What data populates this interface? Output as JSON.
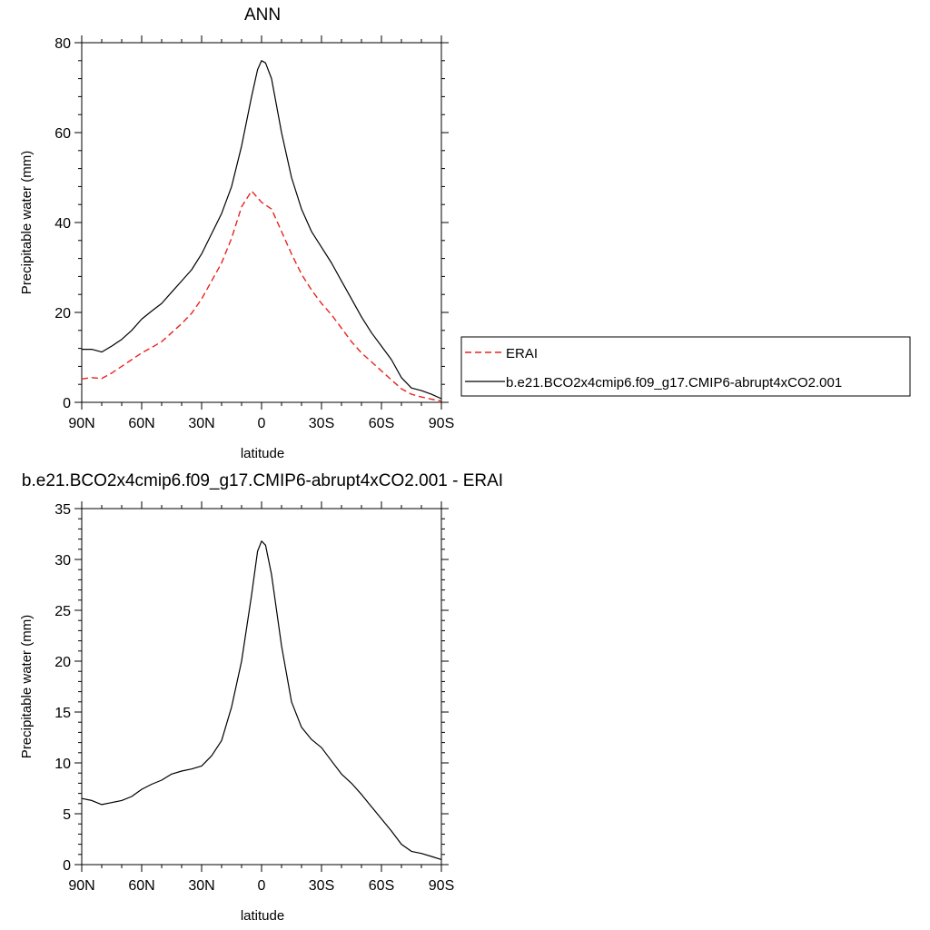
{
  "chart_data": [
    {
      "type": "line",
      "title": "ANN",
      "xlabel": "latitude",
      "ylabel": "Precipitable water (mm)",
      "xlim": [
        90,
        -90
      ],
      "ylim": [
        0,
        80
      ],
      "xticks": [
        90,
        60,
        30,
        0,
        -30,
        -60,
        -90
      ],
      "xtick_labels": [
        "90N",
        "60N",
        "30N",
        "0",
        "30S",
        "60S",
        "90S"
      ],
      "yticks": [
        0,
        20,
        40,
        60,
        80
      ],
      "yminor_step": 4,
      "xminor_step": 10,
      "grid": false,
      "legend": {
        "position": "right",
        "show": true
      },
      "series": [
        {
          "name": "ERAI",
          "color": "#e8231f",
          "dash": "dashed",
          "x": [
            90,
            85,
            80,
            75,
            70,
            65,
            60,
            55,
            50,
            45,
            40,
            35,
            30,
            25,
            20,
            15,
            10,
            5,
            0,
            -5,
            -10,
            -15,
            -20,
            -25,
            -30,
            -35,
            -40,
            -45,
            -50,
            -55,
            -60,
            -65,
            -70,
            -75,
            -80,
            -85,
            -90
          ],
          "y": [
            5.2,
            5.5,
            5.3,
            6.5,
            8.0,
            9.5,
            11.0,
            12.2,
            13.5,
            15.5,
            17.5,
            19.8,
            23.0,
            27.0,
            31.0,
            36.5,
            43.5,
            47.0,
            44.5,
            43.0,
            38.0,
            33.0,
            28.5,
            25.0,
            22.0,
            19.5,
            16.5,
            13.5,
            11.0,
            9.0,
            7.0,
            5.0,
            3.0,
            1.8,
            1.2,
            0.7,
            0.3
          ]
        },
        {
          "name": "b.e21.BCO2x4cmip6.f09_g17.CMIP6-abrupt4xCO2.001",
          "color": "#000000",
          "dash": "solid",
          "x": [
            90,
            85,
            80,
            75,
            70,
            65,
            60,
            55,
            50,
            45,
            40,
            35,
            30,
            25,
            20,
            15,
            10,
            5,
            2,
            0,
            -2,
            -5,
            -10,
            -15,
            -20,
            -25,
            -30,
            -35,
            -40,
            -45,
            -50,
            -55,
            -60,
            -65,
            -70,
            -75,
            -80,
            -85,
            -90
          ],
          "y": [
            11.8,
            11.8,
            11.2,
            12.5,
            14.0,
            16.0,
            18.5,
            20.3,
            22.0,
            24.5,
            27.0,
            29.5,
            33.0,
            37.5,
            42.0,
            48.0,
            57.0,
            68.0,
            74.0,
            76.0,
            75.5,
            72.0,
            60.0,
            50.0,
            43.0,
            38.0,
            34.5,
            31.0,
            27.0,
            23.0,
            19.0,
            15.5,
            12.5,
            9.5,
            5.5,
            3.2,
            2.6,
            1.8,
            0.8
          ]
        }
      ]
    },
    {
      "type": "line",
      "title": "b.e21.BCO2x4cmip6.f09_g17.CMIP6-abrupt4xCO2.001 - ERAI",
      "xlabel": "latitude",
      "ylabel": "Precipitable water (mm)",
      "xlim": [
        90,
        -90
      ],
      "ylim": [
        0,
        35
      ],
      "xticks": [
        90,
        60,
        30,
        0,
        -30,
        -60,
        -90
      ],
      "xtick_labels": [
        "90N",
        "60N",
        "30N",
        "0",
        "30S",
        "60S",
        "90S"
      ],
      "yticks": [
        0,
        5,
        10,
        15,
        20,
        25,
        30,
        35
      ],
      "yminor_step": 1,
      "xminor_step": 10,
      "grid": false,
      "legend": {
        "show": false
      },
      "series": [
        {
          "color": "#000000",
          "dash": "solid",
          "x": [
            90,
            85,
            80,
            75,
            70,
            65,
            60,
            55,
            50,
            45,
            40,
            35,
            30,
            25,
            20,
            15,
            10,
            5,
            2,
            0,
            -2,
            -5,
            -10,
            -15,
            -20,
            -25,
            -30,
            -35,
            -40,
            -45,
            -50,
            -55,
            -60,
            -65,
            -70,
            -75,
            -80,
            -85,
            -90
          ],
          "y": [
            6.5,
            6.3,
            5.9,
            6.1,
            6.3,
            6.7,
            7.4,
            7.9,
            8.3,
            8.9,
            9.2,
            9.4,
            9.7,
            10.7,
            12.2,
            15.5,
            20.0,
            26.5,
            30.8,
            31.8,
            31.4,
            28.5,
            21.5,
            16.0,
            13.5,
            12.3,
            11.5,
            10.2,
            8.9,
            8.0,
            6.9,
            5.7,
            4.5,
            3.3,
            2.0,
            1.3,
            1.1,
            0.8,
            0.5
          ]
        }
      ]
    }
  ]
}
